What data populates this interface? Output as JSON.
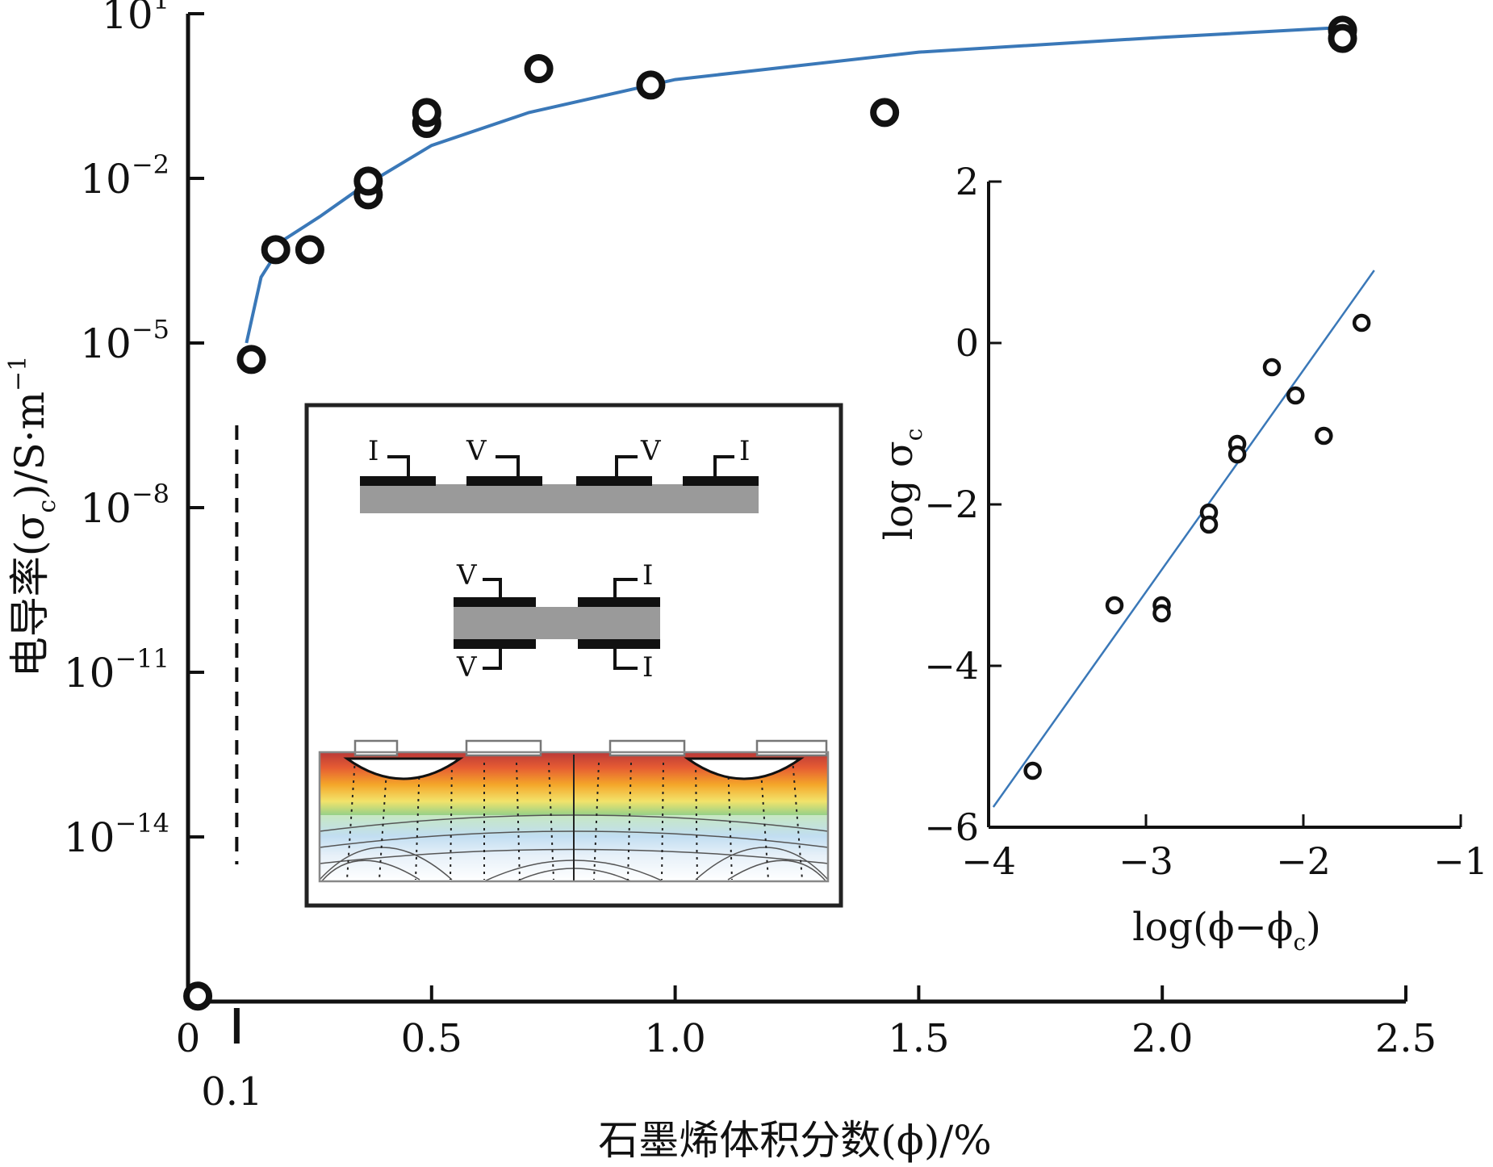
{
  "chart_data": [
    {
      "type": "scatter",
      "scale": "log-y",
      "xlabel": "石墨烯体积分数(ϕ)/%",
      "ylabel": {
        "main": "电导率(σ",
        "sub": "c",
        "tail": ")/S·m",
        "sup": "−1"
      },
      "xlim": [
        0,
        2.5
      ],
      "ylim_log10": [
        -17,
        1
      ],
      "x_ticks": [
        {
          "v": 0,
          "label": "0"
        },
        {
          "v": 0.5,
          "label": "0.5"
        },
        {
          "v": 1.0,
          "label": "1.0"
        },
        {
          "v": 1.5,
          "label": "1.5"
        },
        {
          "v": 2.0,
          "label": "2.0"
        },
        {
          "v": 2.5,
          "label": "2.5"
        }
      ],
      "y_ticks": [
        {
          "v": 1,
          "base": "10",
          "exp": "1"
        },
        {
          "v": -2,
          "base": "10",
          "exp": "−2"
        },
        {
          "v": -5,
          "base": "10",
          "exp": "−5"
        },
        {
          "v": -8,
          "base": "10",
          "exp": "−8"
        },
        {
          "v": -11,
          "base": "10",
          "exp": "−11"
        },
        {
          "v": -14,
          "base": "10",
          "exp": "−14"
        }
      ],
      "threshold": {
        "x": 0.1,
        "label": "0.1",
        "y_from_log10": -14.5,
        "y_to_log10": -6.5
      },
      "series": [
        {
          "points": [
            {
              "x": 0.02,
              "y_log10": -16.9
            },
            {
              "x": 0.13,
              "y_log10": -5.3
            },
            {
              "x": 0.18,
              "y_log10": -3.3
            },
            {
              "x": 0.25,
              "y_log10": -3.3
            },
            {
              "x": 0.37,
              "y_log10": -2.3
            },
            {
              "x": 0.37,
              "y_log10": -2.05
            },
            {
              "x": 0.49,
              "y_log10": -1.0
            },
            {
              "x": 0.49,
              "y_log10": -0.8
            },
            {
              "x": 0.72,
              "y_log10": 0.0
            },
            {
              "x": 0.95,
              "y_log10": -0.3
            },
            {
              "x": 1.43,
              "y_log10": -0.8
            },
            {
              "x": 2.37,
              "y_log10": 0.7
            },
            {
              "x": 2.37,
              "y_log10": 0.55
            }
          ]
        },
        {
          "kind": "fit",
          "points": [
            {
              "x": 0.12,
              "y_log10": -5.0
            },
            {
              "x": 0.15,
              "y_log10": -3.8
            },
            {
              "x": 0.2,
              "y_log10": -3.1
            },
            {
              "x": 0.27,
              "y_log10": -2.7
            },
            {
              "x": 0.35,
              "y_log10": -2.2
            },
            {
              "x": 0.5,
              "y_log10": -1.4
            },
            {
              "x": 0.7,
              "y_log10": -0.8
            },
            {
              "x": 1.0,
              "y_log10": -0.2
            },
            {
              "x": 1.5,
              "y_log10": 0.3
            },
            {
              "x": 2.0,
              "y_log10": 0.57
            },
            {
              "x": 2.37,
              "y_log10": 0.75
            }
          ]
        }
      ]
    },
    {
      "type": "scatter",
      "xlabel": {
        "main": "log(ϕ−ϕ",
        "sub": "c",
        "tail": ")"
      },
      "ylabel": {
        "main": "log σ",
        "sub": "c"
      },
      "xlim": [
        -4,
        -1
      ],
      "ylim": [
        -6,
        2
      ],
      "x_ticks": [
        {
          "v": -4,
          "label": "−4"
        },
        {
          "v": -3,
          "label": "−3"
        },
        {
          "v": -2,
          "label": "−2"
        },
        {
          "v": -1,
          "label": "−1"
        }
      ],
      "y_ticks": [
        {
          "v": 2,
          "label": "2"
        },
        {
          "v": 0,
          "label": "0"
        },
        {
          "v": -2,
          "label": "−2"
        },
        {
          "v": -4,
          "label": "−4"
        },
        {
          "v": -6,
          "label": "−6"
        }
      ],
      "series": [
        {
          "points": [
            {
              "x": -3.72,
              "y": -5.3
            },
            {
              "x": -3.2,
              "y": -3.25
            },
            {
              "x": -2.9,
              "y": -3.25
            },
            {
              "x": -2.9,
              "y": -3.35
            },
            {
              "x": -2.6,
              "y": -2.1
            },
            {
              "x": -2.6,
              "y": -2.25
            },
            {
              "x": -2.42,
              "y": -1.25
            },
            {
              "x": -2.42,
              "y": -1.38
            },
            {
              "x": -2.2,
              "y": -0.3
            },
            {
              "x": -2.05,
              "y": -0.65
            },
            {
              "x": -1.87,
              "y": -1.15
            },
            {
              "x": -1.63,
              "y": 0.25
            }
          ]
        },
        {
          "kind": "fit",
          "points": [
            {
              "x": -3.97,
              "y": -5.75
            },
            {
              "x": -1.55,
              "y": 0.9
            }
          ]
        }
      ]
    }
  ],
  "schematic": {
    "electrode_labels_top": [
      "I",
      "V",
      "V",
      "I"
    ],
    "electrode_labels_mid_top": [
      "V",
      "I"
    ],
    "electrode_labels_mid_bottom": [
      "V",
      "I"
    ]
  }
}
